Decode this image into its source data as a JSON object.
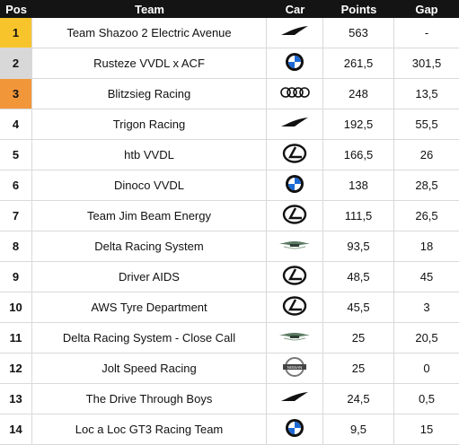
{
  "headers": {
    "pos": "Pos",
    "team": "Team",
    "car": "Car",
    "points": "Points",
    "gap": "Gap"
  },
  "colors": {
    "header_bg": "#141414",
    "gold": "#f7c52b",
    "silver": "#d8d8d8",
    "bronze": "#f2963a"
  },
  "rows": [
    {
      "pos": "1",
      "team": "Team Shazoo 2 Electric Avenue",
      "car": "mclaren-icon",
      "points": "563",
      "gap": "-"
    },
    {
      "pos": "2",
      "team": "Rusteze VVDL x ACF",
      "car": "bmw-icon",
      "points": "261,5",
      "gap": "301,5"
    },
    {
      "pos": "3",
      "team": "Blitzsieg Racing",
      "car": "audi-icon",
      "points": "248",
      "gap": "13,5"
    },
    {
      "pos": "4",
      "team": "Trigon Racing",
      "car": "mclaren-icon",
      "points": "192,5",
      "gap": "55,5"
    },
    {
      "pos": "5",
      "team": "htb VVDL",
      "car": "lexus-icon",
      "points": "166,5",
      "gap": "26"
    },
    {
      "pos": "6",
      "team": "Dinoco VVDL",
      "car": "bmw-icon",
      "points": "138",
      "gap": "28,5"
    },
    {
      "pos": "7",
      "team": "Team Jim Beam Energy",
      "car": "lexus-icon",
      "points": "111,5",
      "gap": "26,5"
    },
    {
      "pos": "8",
      "team": "Delta Racing System",
      "car": "aston-martin-icon",
      "points": "93,5",
      "gap": "18"
    },
    {
      "pos": "9",
      "team": "Driver AIDS",
      "car": "lexus-icon",
      "points": "48,5",
      "gap": "45"
    },
    {
      "pos": "10",
      "team": "AWS Tyre Department",
      "car": "lexus-icon",
      "points": "45,5",
      "gap": "3"
    },
    {
      "pos": "11",
      "team": "Delta Racing System - Close Call",
      "car": "aston-martin-icon",
      "points": "25",
      "gap": "20,5"
    },
    {
      "pos": "12",
      "team": "Jolt Speed Racing",
      "car": "nissan-icon",
      "points": "25",
      "gap": "0"
    },
    {
      "pos": "13",
      "team": "The Drive Through Boys",
      "car": "mclaren-icon",
      "points": "24,5",
      "gap": "0,5"
    },
    {
      "pos": "14",
      "team": "Loc a Loc GT3 Racing Team",
      "car": "bmw-icon",
      "points": "9,5",
      "gap": "15"
    }
  ]
}
